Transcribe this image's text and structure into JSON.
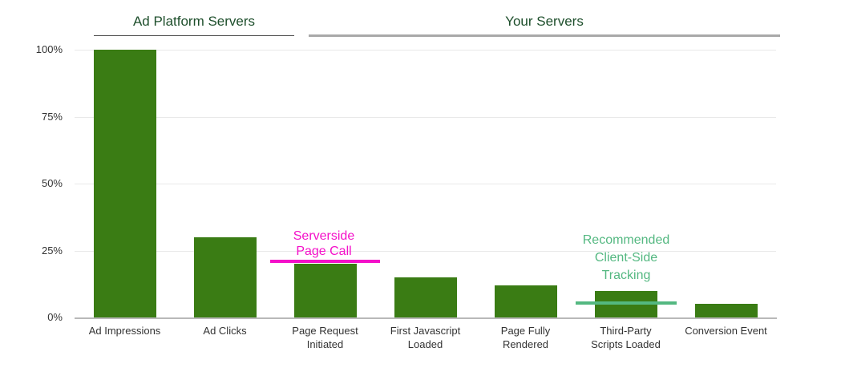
{
  "header": {
    "sections": [
      {
        "label": "Ad Platform Servers"
      },
      {
        "label": "Your Servers"
      }
    ]
  },
  "chart_data": {
    "type": "bar",
    "title": "",
    "categories": [
      "Ad Impressions",
      "Ad Clicks",
      "Page Request Initiated",
      "First Javascript Loaded",
      "Page Fully Rendered",
      "Third-Party Scripts Loaded",
      "Conversion Event"
    ],
    "categories_lines": [
      [
        "Ad Impressions"
      ],
      [
        "Ad Clicks"
      ],
      [
        "Page Request",
        "Initiated"
      ],
      [
        "First Javascript",
        "Loaded"
      ],
      [
        "Page Fully",
        "Rendered"
      ],
      [
        "Third-Party",
        "Scripts Loaded"
      ],
      [
        "Conversion Event"
      ]
    ],
    "values": [
      100,
      30,
      20,
      15,
      12,
      10,
      5
    ],
    "ylim": [
      0,
      100
    ],
    "ytick_values": [
      0,
      25,
      50,
      75,
      100
    ],
    "ytick_labels": [
      "0%",
      "25%",
      "50%",
      "75%",
      "100%"
    ],
    "grid": true,
    "legend": "none",
    "bar_color": "#3a7c14",
    "section_groups": [
      {
        "label": "Ad Platform Servers",
        "categories": [
          "Ad Impressions",
          "Ad Clicks"
        ]
      },
      {
        "label": "Your Servers",
        "categories": [
          "Page Request Initiated",
          "First Javascript Loaded",
          "Page Fully Rendered",
          "Third-Party Scripts Loaded",
          "Conversion Event"
        ]
      }
    ],
    "annotations": [
      {
        "text": "Serverside Page Call",
        "lines": [
          "Serverside",
          "Page Call"
        ],
        "color": "#f410c9",
        "target_index": 2,
        "line_value": 21
      },
      {
        "text": "Recommended Client-Side Tracking",
        "lines": [
          "Recommended",
          "Client-Side",
          "Tracking"
        ],
        "color": "#54b881",
        "target_index": 5,
        "line_value": 5.4
      }
    ]
  },
  "colors": {
    "bar_green": "#3a7c14",
    "section_title_green": "#1e4f2c",
    "annotation_magenta": "#f410c9",
    "annotation_teal_green": "#54b881",
    "axis_text": "#333333",
    "gridline": "#e9e9e9",
    "axis_line": "#b9b9b9"
  }
}
